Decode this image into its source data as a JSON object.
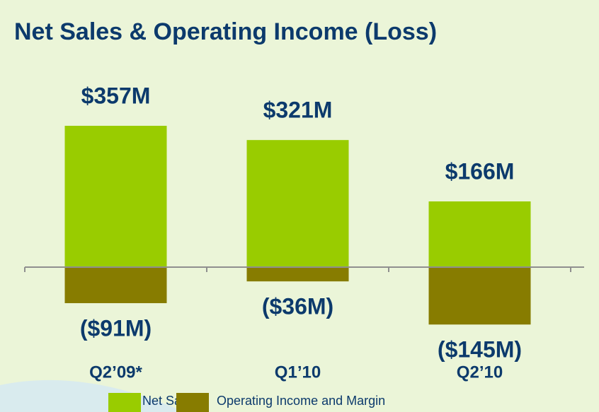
{
  "chart_data": {
    "type": "bar",
    "title": "Net Sales & Operating Income (Loss)",
    "categories": [
      "Q2’09*",
      "Q1’10",
      "Q2’10"
    ],
    "series": [
      {
        "name": "Net Sales",
        "color": "#99cc00",
        "values": [
          357,
          321,
          166
        ],
        "value_labels": [
          "$357M",
          "$321M",
          "$166M"
        ]
      },
      {
        "name": "Operating Income and Margin",
        "color": "#877c00",
        "values": [
          -91,
          -36,
          -145
        ],
        "value_labels": [
          "($91M)",
          "($36M)",
          "($145M)"
        ]
      }
    ]
  }
}
